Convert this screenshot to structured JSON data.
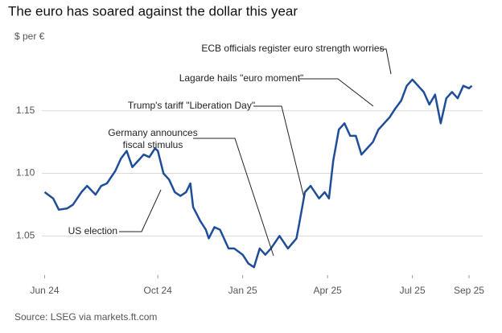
{
  "chart_data": {
    "type": "line",
    "title": "The euro has soared against the dollar this year",
    "y_label": "$ per €",
    "source": "Source: LSEG via markets.ft.com",
    "grid": true,
    "xlim": [
      -0.1,
      15.2
    ],
    "xticks": [
      {
        "value": 0,
        "label": "Jun 24"
      },
      {
        "value": 4,
        "label": "Oct 24"
      },
      {
        "value": 7,
        "label": "Jan 25"
      },
      {
        "value": 10,
        "label": "Apr 25"
      },
      {
        "value": 13,
        "label": "Jul 25"
      },
      {
        "value": 15,
        "label": "Sep 25"
      }
    ],
    "ylim": [
      1.02,
      1.2
    ],
    "yticks": [
      1.05,
      {
        "value": 1.1,
        "label": "1.10"
      },
      1.15
    ],
    "x": [
      0,
      0.3,
      0.5,
      0.8,
      1.0,
      1.3,
      1.5,
      1.8,
      2.0,
      2.2,
      2.5,
      2.7,
      2.9,
      3.1,
      3.3,
      3.5,
      3.7,
      3.9,
      4.0,
      4.2,
      4.4,
      4.6,
      4.8,
      5.0,
      5.15,
      5.25,
      5.5,
      5.7,
      5.8,
      6.0,
      6.2,
      6.5,
      6.7,
      7.0,
      7.2,
      7.4,
      7.6,
      7.8,
      8.0,
      8.3,
      8.6,
      8.9,
      9.0,
      9.2,
      9.4,
      9.7,
      9.9,
      10.05,
      10.2,
      10.4,
      10.6,
      10.8,
      11.0,
      11.2,
      11.4,
      11.6,
      11.8,
      12.0,
      12.2,
      12.4,
      12.6,
      12.8,
      13.0,
      13.2,
      13.4,
      13.6,
      13.8,
      14.0,
      14.2,
      14.4,
      14.6,
      14.8,
      15.0,
      15.1
    ],
    "series": [
      {
        "color": "#1f4e99",
        "values": [
          1.085,
          1.08,
          1.071,
          1.072,
          1.075,
          1.085,
          1.09,
          1.083,
          1.09,
          1.092,
          1.102,
          1.112,
          1.118,
          1.105,
          1.11,
          1.115,
          1.113,
          1.12,
          1.118,
          1.1,
          1.095,
          1.085,
          1.082,
          1.085,
          1.092,
          1.073,
          1.062,
          1.055,
          1.048,
          1.057,
          1.055,
          1.04,
          1.04,
          1.035,
          1.028,
          1.025,
          1.04,
          1.035,
          1.04,
          1.05,
          1.04,
          1.048,
          1.06,
          1.085,
          1.09,
          1.08,
          1.085,
          1.08,
          1.11,
          1.135,
          1.14,
          1.13,
          1.13,
          1.115,
          1.12,
          1.125,
          1.135,
          1.14,
          1.145,
          1.152,
          1.158,
          1.17,
          1.175,
          1.17,
          1.165,
          1.155,
          1.163,
          1.14,
          1.16,
          1.165,
          1.16,
          1.17,
          1.168,
          1.17
        ]
      }
    ],
    "annotations": [
      {
        "text": [
          "US election"
        ]
      },
      {
        "text": [
          "Germany announces",
          "fiscal stimulus"
        ]
      },
      {
        "text": [
          "Trump's tariff \"Liberation Day\""
        ]
      },
      {
        "text": [
          "Lagarde hails \"euro moment\""
        ]
      },
      {
        "text": [
          "ECB officials register euro strength worries"
        ]
      }
    ]
  }
}
